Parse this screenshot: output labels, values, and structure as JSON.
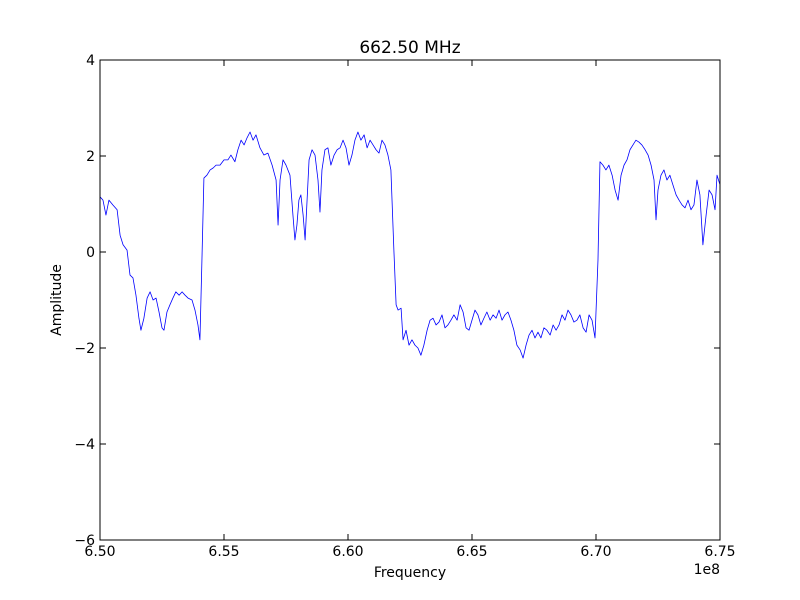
{
  "chart_data": {
    "type": "line",
    "title": "662.50 MHz",
    "xlabel": "Frequency",
    "ylabel": "Amplitude",
    "x_offset_label": "1e8",
    "xlim": [
      650000000,
      675000000
    ],
    "ylim": [
      -6,
      4
    ],
    "xticks": [
      {
        "value": 650000000,
        "label": "6.50"
      },
      {
        "value": 655000000,
        "label": "6.55"
      },
      {
        "value": 660000000,
        "label": "6.60"
      },
      {
        "value": 665000000,
        "label": "6.65"
      },
      {
        "value": 670000000,
        "label": "6.70"
      },
      {
        "value": 675000000,
        "label": "6.75"
      }
    ],
    "yticks": [
      {
        "value": -6,
        "label": "−6"
      },
      {
        "value": -4,
        "label": "−4"
      },
      {
        "value": -2,
        "label": "−2"
      },
      0,
      2,
      4
    ],
    "grid": false,
    "x": [
      650000000,
      650120000,
      650240000,
      650360000,
      650520000,
      650690000,
      650810000,
      650930000,
      651090000,
      651210000,
      651330000,
      651450000,
      651570000,
      651650000,
      651770000,
      651900000,
      652020000,
      652140000,
      652260000,
      652380000,
      652500000,
      652580000,
      652700000,
      652820000,
      652940000,
      653060000,
      653190000,
      653310000,
      653430000,
      653550000,
      653710000,
      653830000,
      653950000,
      654030000,
      654110000,
      654190000,
      654310000,
      654440000,
      654560000,
      654680000,
      654840000,
      655000000,
      655160000,
      655280000,
      655440000,
      655560000,
      655690000,
      655810000,
      655930000,
      656050000,
      656170000,
      656290000,
      656450000,
      656610000,
      656770000,
      656940000,
      657100000,
      657180000,
      657260000,
      657380000,
      657500000,
      657660000,
      657780000,
      657860000,
      657940000,
      658020000,
      658100000,
      658190000,
      658270000,
      658350000,
      658430000,
      658550000,
      658670000,
      658790000,
      658870000,
      658950000,
      659070000,
      659190000,
      659310000,
      659440000,
      659560000,
      659680000,
      659800000,
      659920000,
      660040000,
      660160000,
      660280000,
      660400000,
      660520000,
      660650000,
      660770000,
      660890000,
      661010000,
      661130000,
      661250000,
      661370000,
      661490000,
      661610000,
      661730000,
      661850000,
      661940000,
      662020000,
      662140000,
      662220000,
      662340000,
      662460000,
      662580000,
      662700000,
      662820000,
      662940000,
      663060000,
      663190000,
      663310000,
      663430000,
      663550000,
      663670000,
      663790000,
      663910000,
      664030000,
      664150000,
      664270000,
      664400000,
      664520000,
      664640000,
      664760000,
      664880000,
      665000000,
      665120000,
      665240000,
      665360000,
      665480000,
      665600000,
      665730000,
      665850000,
      665970000,
      666090000,
      666210000,
      666330000,
      666450000,
      666570000,
      666690000,
      666810000,
      666940000,
      667060000,
      667180000,
      667300000,
      667420000,
      667540000,
      667660000,
      667780000,
      667900000,
      668020000,
      668150000,
      668270000,
      668390000,
      668510000,
      668630000,
      668750000,
      668870000,
      668990000,
      669110000,
      669230000,
      669350000,
      669480000,
      669600000,
      669720000,
      669840000,
      669960000,
      670080000,
      670160000,
      670280000,
      670400000,
      670520000,
      670650000,
      670770000,
      670890000,
      671010000,
      671130000,
      671250000,
      671370000,
      671490000,
      671610000,
      671730000,
      671850000,
      671980000,
      672100000,
      672220000,
      672340000,
      672420000,
      672500000,
      672620000,
      672740000,
      672860000,
      672980000,
      673100000,
      673230000,
      673350000,
      673470000,
      673590000,
      673710000,
      673830000,
      673950000,
      674070000,
      674190000,
      674310000,
      674440000,
      674560000,
      674680000,
      674800000,
      674880000,
      675000000
    ],
    "series": [
      {
        "name": "Amplitude",
        "color": "#0000ff",
        "values": [
          1.15,
          1.08,
          0.77,
          1.08,
          0.98,
          0.88,
          0.35,
          0.15,
          0.04,
          -0.48,
          -0.54,
          -0.9,
          -1.38,
          -1.63,
          -1.38,
          -0.96,
          -0.83,
          -1.0,
          -0.96,
          -1.25,
          -1.58,
          -1.63,
          -1.25,
          -1.1,
          -0.96,
          -0.83,
          -0.9,
          -0.83,
          -0.9,
          -0.96,
          -1.0,
          -1.21,
          -1.52,
          -1.83,
          -0.17,
          1.54,
          1.6,
          1.71,
          1.75,
          1.81,
          1.81,
          1.92,
          1.92,
          2.02,
          1.88,
          2.13,
          2.33,
          2.23,
          2.38,
          2.5,
          2.33,
          2.44,
          2.17,
          2.02,
          2.06,
          1.81,
          1.5,
          0.56,
          1.5,
          1.92,
          1.81,
          1.6,
          0.77,
          0.25,
          0.56,
          1.08,
          1.19,
          0.77,
          0.25,
          1.08,
          1.92,
          2.13,
          2.02,
          1.5,
          0.83,
          1.71,
          2.13,
          2.17,
          1.81,
          2.02,
          2.13,
          2.17,
          2.33,
          2.17,
          1.81,
          2.02,
          2.33,
          2.5,
          2.33,
          2.44,
          2.17,
          2.33,
          2.23,
          2.13,
          2.06,
          2.33,
          2.23,
          2.02,
          1.71,
          0.04,
          -1.1,
          -1.21,
          -1.17,
          -1.83,
          -1.63,
          -1.94,
          -1.83,
          -1.94,
          -2.0,
          -2.15,
          -1.94,
          -1.63,
          -1.42,
          -1.38,
          -1.52,
          -1.46,
          -1.31,
          -1.58,
          -1.52,
          -1.42,
          -1.31,
          -1.42,
          -1.1,
          -1.25,
          -1.58,
          -1.63,
          -1.42,
          -1.21,
          -1.31,
          -1.52,
          -1.38,
          -1.25,
          -1.42,
          -1.31,
          -1.38,
          -1.21,
          -1.42,
          -1.31,
          -1.25,
          -1.42,
          -1.63,
          -1.94,
          -2.04,
          -2.21,
          -1.94,
          -1.73,
          -1.63,
          -1.79,
          -1.67,
          -1.79,
          -1.58,
          -1.63,
          -1.73,
          -1.52,
          -1.63,
          -1.52,
          -1.31,
          -1.42,
          -1.21,
          -1.31,
          -1.46,
          -1.42,
          -1.31,
          -1.58,
          -1.67,
          -1.31,
          -1.42,
          -1.79,
          -0.17,
          1.88,
          1.81,
          1.71,
          1.81,
          1.6,
          1.29,
          1.08,
          1.6,
          1.81,
          1.92,
          2.13,
          2.23,
          2.33,
          2.29,
          2.23,
          2.13,
          2.02,
          1.81,
          1.5,
          0.67,
          1.29,
          1.6,
          1.71,
          1.5,
          1.6,
          1.4,
          1.19,
          1.08,
          0.98,
          0.92,
          1.08,
          0.88,
          0.98,
          1.5,
          1.19,
          0.15,
          0.77,
          1.29,
          1.19,
          0.88,
          1.6,
          1.4
        ]
      }
    ]
  }
}
